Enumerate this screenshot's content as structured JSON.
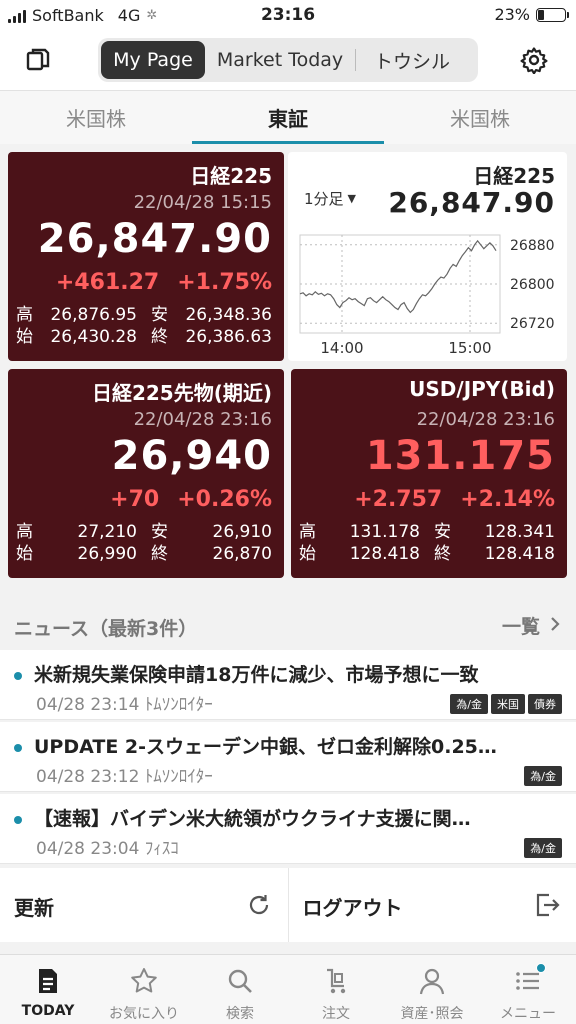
{
  "status_bar": {
    "carrier": "SoftBank",
    "network": "4G",
    "time": "23:16",
    "battery": "23%",
    "battery_level": 0.23
  },
  "header": {
    "segments": [
      "My Page",
      "Market Today",
      "トウシル"
    ],
    "active_segment": 0
  },
  "market_tabs": {
    "items": [
      "米国株",
      "東証",
      "米国株"
    ],
    "active": 1
  },
  "quotes": {
    "nikkei": {
      "name": "日経225",
      "date": "22/04/28 15:15",
      "price": "26,847.90",
      "change": "+461.27",
      "change_pct": "+1.75%",
      "high_label": "高",
      "high": "26,876.95",
      "low_label": "安",
      "low": "26,348.36",
      "open_label": "始",
      "open": "26,430.28",
      "close_label": "終",
      "close": "26,386.63"
    },
    "futures": {
      "name": "日経225先物(期近)",
      "date": "22/04/28 23:16",
      "price": "26,940",
      "change": "+70",
      "change_pct": "+0.26%",
      "high_label": "高",
      "high": "27,210",
      "low_label": "安",
      "low": "26,910",
      "open_label": "始",
      "open": "26,990",
      "close_label": "終",
      "close": "26,870"
    },
    "usdjpy": {
      "name": "USD/JPY(Bid)",
      "date": "22/04/28 23:16",
      "price": "131.175",
      "change": "+2.757",
      "change_pct": "+2.14%",
      "high_label": "高",
      "high": "131.178",
      "low_label": "安",
      "low": "128.341",
      "open_label": "始",
      "open": "128.418",
      "close_label": "終",
      "close": "128.418"
    }
  },
  "mini_chart": {
    "name": "日経225",
    "price": "26,847.90",
    "interval": "1分足"
  },
  "chart_data": {
    "type": "line",
    "x_ticks": [
      "14:00",
      "15:00"
    ],
    "y_ticks": [
      26880,
      26800,
      26720
    ],
    "ylim": [
      26700,
      26900
    ],
    "series": [
      {
        "values": [
          26780,
          26782,
          26776,
          26780,
          26778,
          26784,
          26779,
          26781,
          26776,
          26780,
          26778,
          26770,
          26758,
          26752,
          26762,
          26766,
          26772,
          26768,
          26770,
          26764,
          26760,
          26756,
          26770,
          26772,
          26766,
          26762,
          26768,
          26774,
          26768,
          26764,
          26758,
          26752,
          26748,
          26758,
          26762,
          26750,
          26742,
          26748,
          26760,
          26770,
          26778,
          26776,
          26782,
          26790,
          26800,
          26808,
          26814,
          26812,
          26820,
          26832,
          26840,
          26836,
          26848,
          26858,
          26866,
          26874,
          26868,
          26880,
          26888,
          26880,
          26872,
          26878,
          26884,
          26878,
          26868
        ]
      }
    ]
  },
  "news": {
    "title": "ニュース（最新3件）",
    "all_label": "一覧",
    "items": [
      {
        "headline": "米新規失業保険申請18万件に減少、市場予想に一致",
        "time": "04/28 23:14",
        "source": "ﾄﾑｿﾝﾛｲﾀｰ",
        "tags": [
          "為/金",
          "米国",
          "債券"
        ]
      },
      {
        "headline": "UPDATE 2-スウェーデン中銀、ゼロ金利解除0.25…",
        "time": "04/28 23:12",
        "source": "ﾄﾑｿﾝﾛｲﾀｰ",
        "tags": [
          "為/金"
        ]
      },
      {
        "headline": "【速報】バイデン米大統領がウクライナ支援に関…",
        "time": "04/28 23:04",
        "source": "ﾌｨｽｺ",
        "tags": [
          "為/金"
        ]
      }
    ]
  },
  "actions": {
    "refresh": "更新",
    "logout": "ログアウト"
  },
  "bottom_nav": {
    "items": [
      "TODAY",
      "お気に入り",
      "検索",
      "注文",
      "資産･照会",
      "メニュー"
    ],
    "active": 0
  },
  "colors": {
    "card_bg": "#4b1218",
    "up_red": "#ff5f5f",
    "accent": "#1b8eaa"
  }
}
